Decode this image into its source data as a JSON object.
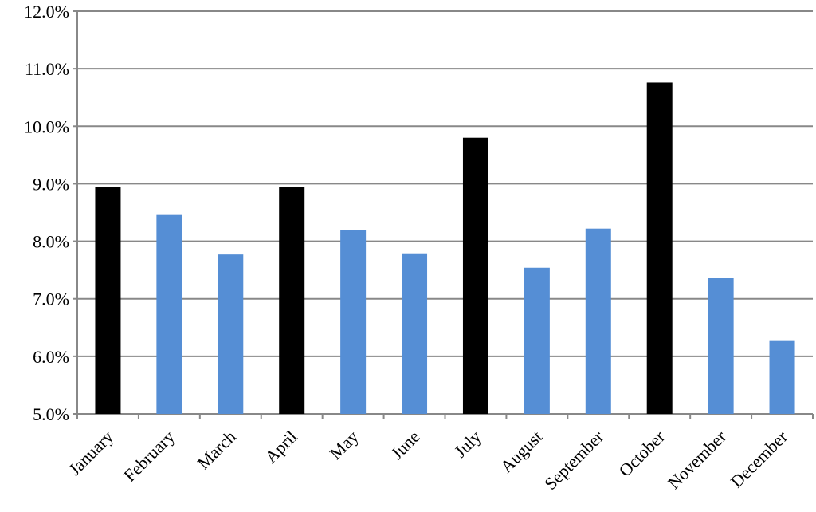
{
  "chart_data": {
    "type": "bar",
    "categories": [
      "January",
      "February",
      "March",
      "April",
      "May",
      "June",
      "July",
      "August",
      "September",
      "October",
      "November",
      "December"
    ],
    "values": [
      8.94,
      8.47,
      7.77,
      8.95,
      8.19,
      7.79,
      9.8,
      7.54,
      8.22,
      10.76,
      7.37,
      6.28
    ],
    "colors": [
      "#000000",
      "#558ed5",
      "#558ed5",
      "#000000",
      "#558ed5",
      "#558ed5",
      "#000000",
      "#558ed5",
      "#558ed5",
      "#000000",
      "#558ed5",
      "#558ed5"
    ],
    "ylim": [
      5,
      12
    ],
    "yticks": [
      {
        "value": 5,
        "label": "5.0%"
      },
      {
        "value": 6,
        "label": "6.0%"
      },
      {
        "value": 7,
        "label": "7.0%"
      },
      {
        "value": 8,
        "label": "8.0%"
      },
      {
        "value": 9,
        "label": "9.0%"
      },
      {
        "value": 10,
        "label": "10.0%"
      },
      {
        "value": 11,
        "label": "11.0%"
      },
      {
        "value": 12,
        "label": "12.0%"
      }
    ],
    "grid": true
  }
}
